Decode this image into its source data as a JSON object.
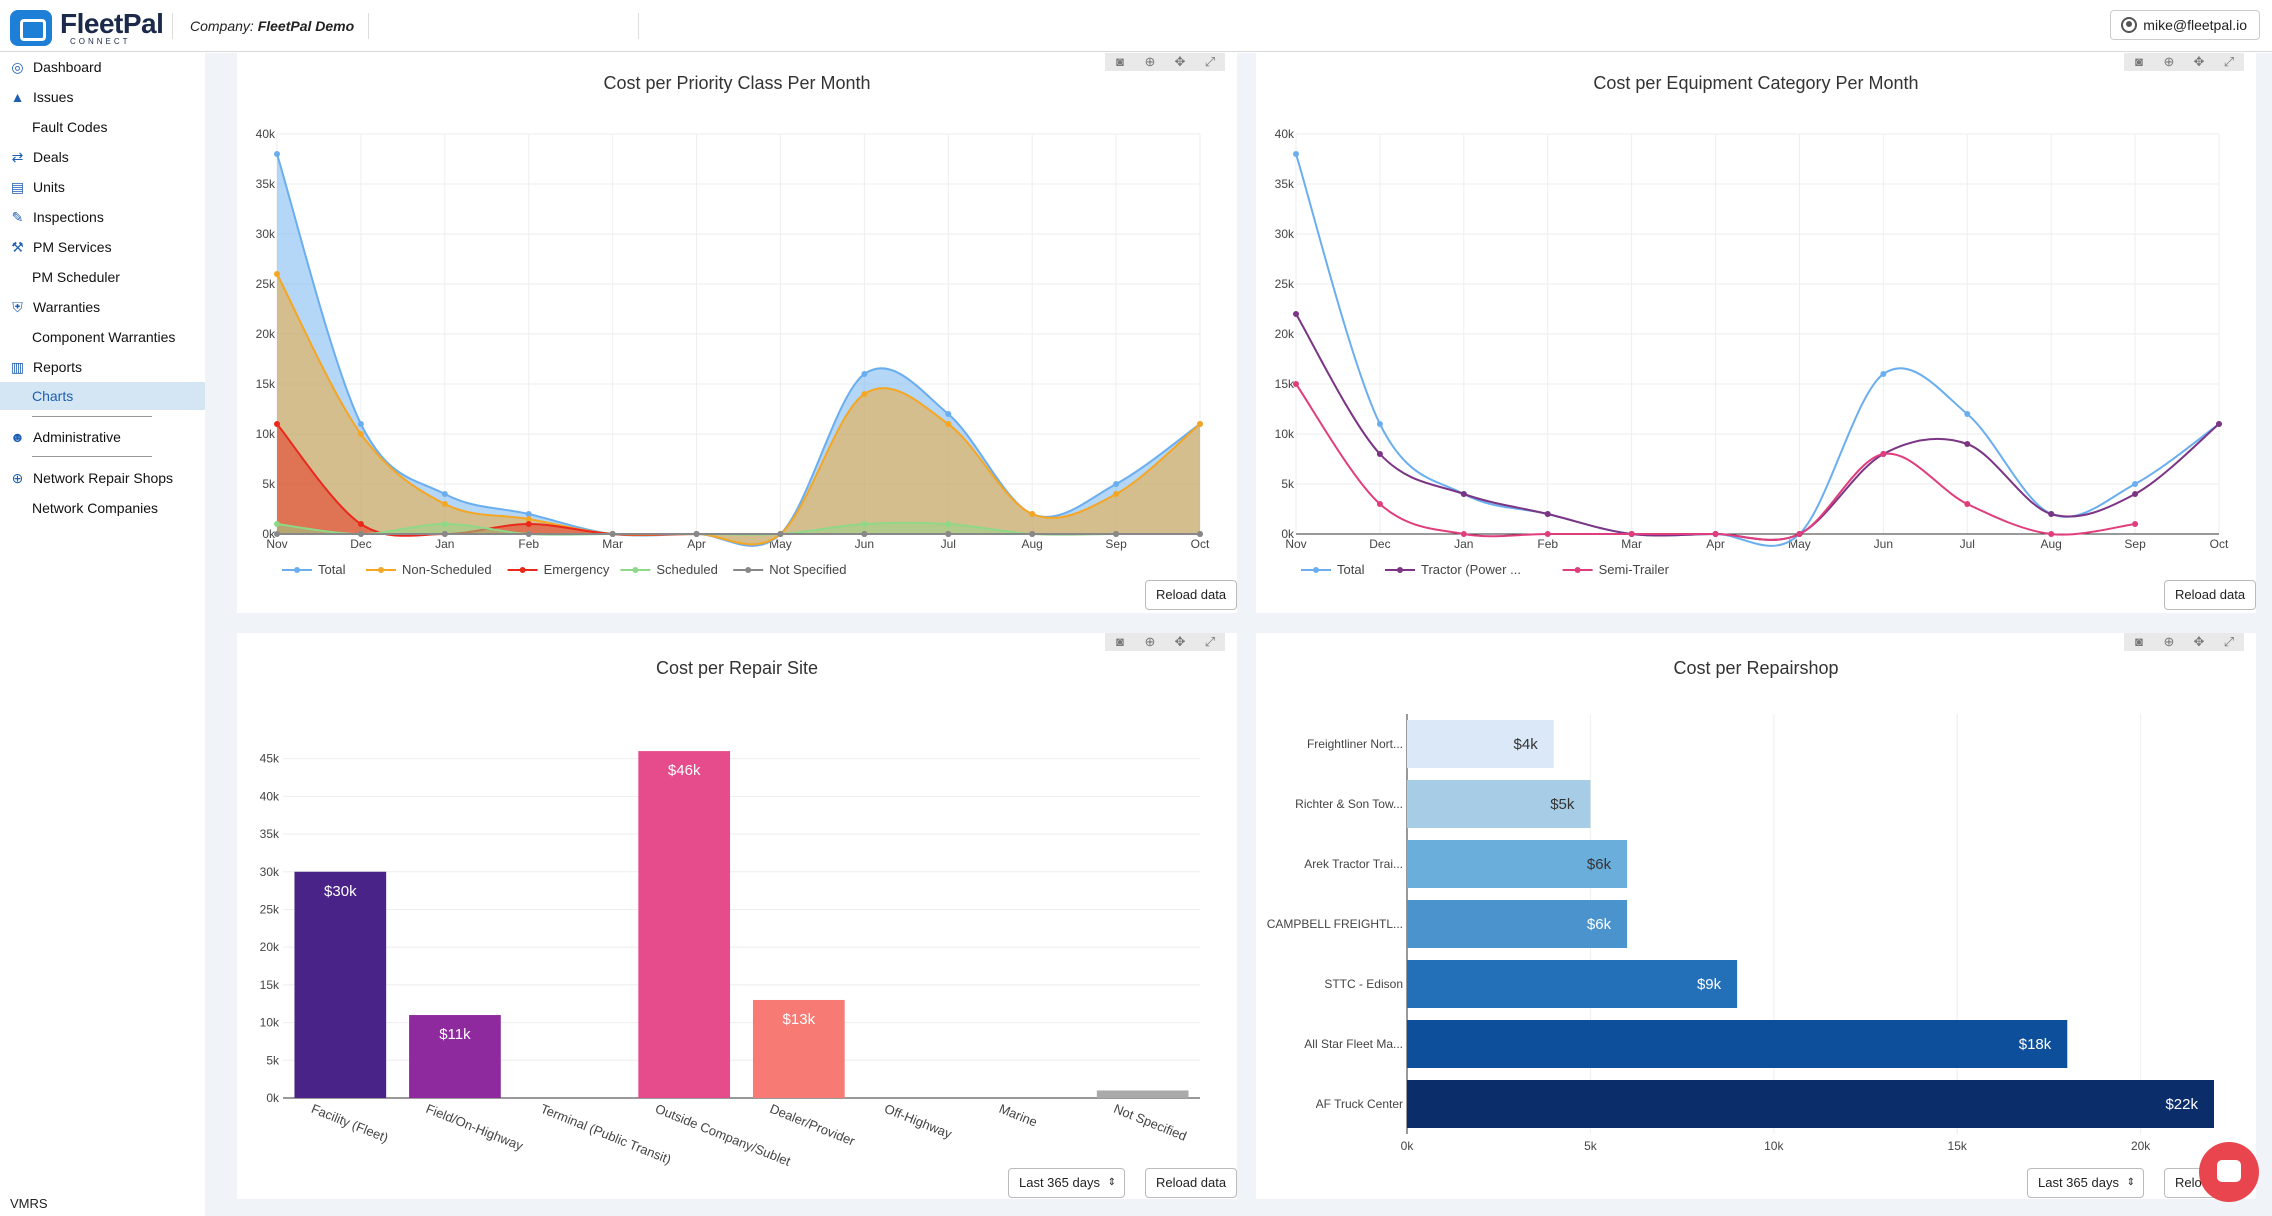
{
  "header": {
    "logo_text": "FleetPal",
    "logo_sub": "CONNECT",
    "company_prefix": "Company: ",
    "company_name": "FleetPal Demo",
    "user_email": "mike@fleetpal.io"
  },
  "sidebar": {
    "items": [
      {
        "label": "Dashboard",
        "icon": "dashboard-icon"
      },
      {
        "label": "Issues",
        "icon": "warning-icon"
      },
      {
        "label": "Fault Codes",
        "icon": ""
      },
      {
        "label": "Deals",
        "icon": "deals-icon"
      },
      {
        "label": "Units",
        "icon": "truck-icon"
      },
      {
        "label": "Inspections",
        "icon": "edit-icon"
      },
      {
        "label": "PM Services",
        "icon": "wrench-icon"
      },
      {
        "label": "PM Scheduler",
        "icon": ""
      },
      {
        "label": "Warranties",
        "icon": "shield-icon"
      },
      {
        "label": "Component Warranties",
        "icon": ""
      },
      {
        "label": "Reports",
        "icon": "bar-chart-icon"
      },
      {
        "label": "Charts",
        "icon": ""
      },
      {
        "label": "Administrative",
        "icon": "users-icon"
      },
      {
        "label": "Network Repair Shops",
        "icon": "globe-icon"
      },
      {
        "label": "Network Companies",
        "icon": ""
      }
    ],
    "footer": "VMRS"
  },
  "buttons": {
    "reload": "Reload data",
    "range": "Last 365 days",
    "reload_partial": "Relo"
  },
  "colors": {
    "total": "#6aaef0",
    "non_scheduled": "#f5a623",
    "emergency": "#e8291c",
    "scheduled": "#8fd88a",
    "not_specified": "#888888",
    "tractor": "#7b3584",
    "semi_trailer": "#e03d7d",
    "chat": "#e8454e"
  },
  "chart_data": [
    {
      "type": "area",
      "title": "Cost per Priority Class Per Month",
      "categories": [
        "Nov",
        "Dec",
        "Jan",
        "Feb",
        "Mar",
        "Apr",
        "May",
        "Jun",
        "Jul",
        "Aug",
        "Sep",
        "Oct"
      ],
      "ylim": [
        0,
        40000
      ],
      "y_ticks": [
        "0k",
        "5k",
        "10k",
        "15k",
        "20k",
        "25k",
        "30k",
        "35k",
        "40k"
      ],
      "series": [
        {
          "name": "Total",
          "values": [
            38000,
            11000,
            4000,
            2000,
            0,
            0,
            0,
            16000,
            12000,
            2000,
            5000,
            11000
          ]
        },
        {
          "name": "Non-Scheduled",
          "values": [
            26000,
            10000,
            3000,
            1500,
            0,
            0,
            0,
            14000,
            11000,
            2000,
            4000,
            11000
          ]
        },
        {
          "name": "Emergency",
          "values": [
            11000,
            1000,
            0,
            1000,
            0,
            0,
            0,
            0,
            0,
            0,
            0,
            0
          ]
        },
        {
          "name": "Scheduled",
          "values": [
            1000,
            0,
            1000,
            0,
            0,
            0,
            0,
            1000,
            1000,
            0,
            0,
            0
          ]
        },
        {
          "name": "Not Specified",
          "values": [
            0,
            0,
            0,
            0,
            0,
            0,
            0,
            0,
            0,
            0,
            0,
            0
          ]
        }
      ]
    },
    {
      "type": "line",
      "title": "Cost per Equipment Category Per Month",
      "categories": [
        "Nov",
        "Dec",
        "Jan",
        "Feb",
        "Mar",
        "Apr",
        "May",
        "Jun",
        "Jul",
        "Aug",
        "Sep",
        "Oct"
      ],
      "ylim": [
        0,
        40000
      ],
      "y_ticks": [
        "0k",
        "5k",
        "10k",
        "15k",
        "20k",
        "25k",
        "30k",
        "35k",
        "40k"
      ],
      "series": [
        {
          "name": "Total",
          "values": [
            38000,
            11000,
            4000,
            2000,
            0,
            0,
            0,
            16000,
            12000,
            2000,
            5000,
            11000
          ]
        },
        {
          "name": "Tractor (Power ...",
          "values": [
            22000,
            8000,
            4000,
            2000,
            0,
            0,
            0,
            8000,
            9000,
            2000,
            4000,
            11000
          ]
        },
        {
          "name": "Semi-Trailer",
          "values": [
            15000,
            3000,
            0,
            0,
            0,
            0,
            0,
            8000,
            3000,
            0,
            1000,
            null
          ]
        }
      ]
    },
    {
      "type": "bar",
      "title": "Cost per Repair Site",
      "categories": [
        "Facility (Fleet)",
        "Field/On-Highway",
        "Terminal (Public Transit)",
        "Outside Company/Sublet",
        "Dealer/Provider",
        "Off-Highway",
        "Marine",
        "Not Specified"
      ],
      "values": [
        30000,
        11000,
        0,
        46000,
        13000,
        0,
        0,
        1000
      ],
      "data_labels": [
        "$30k",
        "$11k",
        "",
        "$46k",
        "$13k",
        "",
        "",
        ""
      ],
      "colors": [
        "#4a2389",
        "#8e2a9e",
        "#b52d8f",
        "#e64c8b",
        "#f77a75",
        "#f7a06a",
        "#f5c06a",
        "#aaaaaa"
      ],
      "ylim": [
        0,
        48000
      ],
      "y_ticks": [
        "0k",
        "5k",
        "10k",
        "15k",
        "20k",
        "25k",
        "30k",
        "35k",
        "40k",
        "45k"
      ]
    },
    {
      "type": "bar",
      "orientation": "horizontal",
      "title": "Cost per Repairshop",
      "categories": [
        "Freightliner Nort...",
        "Richter & Son Tow...",
        "Arek Tractor Trai...",
        "CAMPBELL FREIGHTL...",
        "STTC - Edison",
        "All Star Fleet Ma...",
        "AF Truck Center"
      ],
      "values": [
        4000,
        5000,
        6000,
        6000,
        9000,
        18000,
        22000
      ],
      "data_labels": [
        "$4k",
        "$5k",
        "$6k",
        "$6k",
        "$9k",
        "$18k",
        "$22k"
      ],
      "colors": [
        "#dbe8f7",
        "#a7cde6",
        "#6aaedb",
        "#4a93cd",
        "#2470b8",
        "#0d4f9b",
        "#0b2e6b"
      ],
      "xlim": [
        0,
        22000
      ],
      "x_ticks": [
        "0k",
        "5k",
        "10k",
        "15k",
        "20k"
      ]
    }
  ]
}
